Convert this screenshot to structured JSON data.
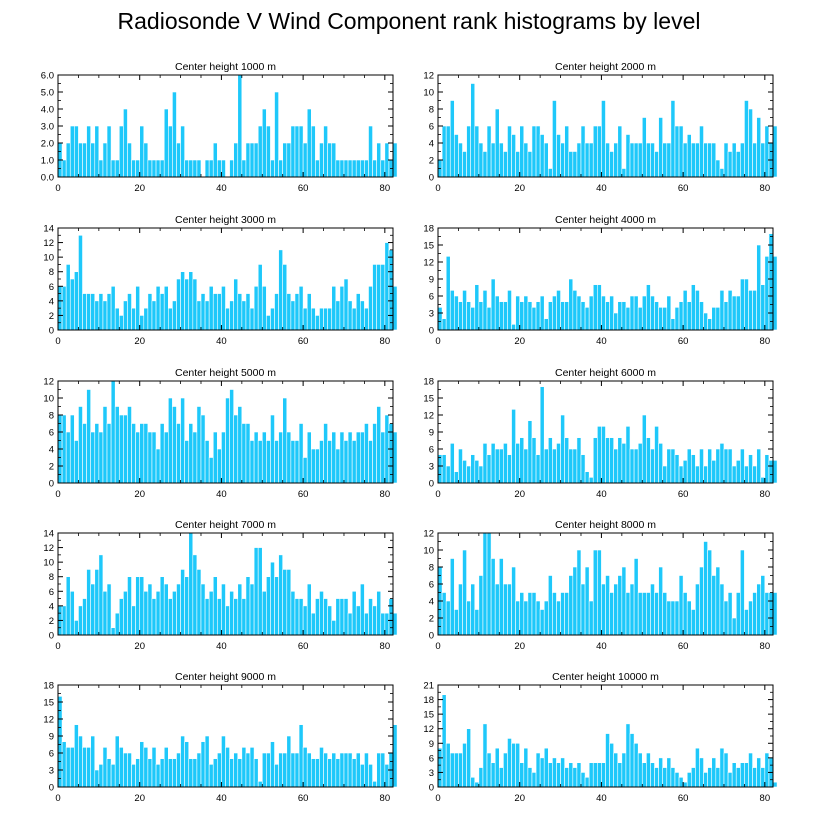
{
  "title": "Radiosonde V Wind Component rank histograms by level",
  "colors": {
    "bar": "#1ec8fa",
    "bar_edge": "#ffffff",
    "axis": "#000000"
  },
  "chart_data": [
    {
      "type": "bar",
      "title": "Center height 1000 m",
      "xlim": [
        0,
        82
      ],
      "ylim": [
        0,
        6
      ],
      "x_ticks": [
        "0",
        "20",
        "40",
        "60",
        "80"
      ],
      "x_tick_values": [
        0,
        20,
        40,
        60,
        80
      ],
      "y_ticks": [
        "0.0",
        "1.0",
        "2.0",
        "3.0",
        "4.0",
        "5.0",
        "6.0"
      ],
      "y_tick_values": [
        0,
        1,
        2,
        3,
        4,
        5,
        6
      ],
      "y_axis_side": "left",
      "values": [
        2,
        1,
        2,
        3,
        3,
        2,
        2,
        3,
        2,
        3,
        1,
        2,
        3,
        1,
        1,
        3,
        4,
        2,
        1,
        1,
        3,
        2,
        1,
        1,
        1,
        1,
        4,
        3,
        5,
        2,
        3,
        1,
        1,
        1,
        1,
        0,
        1,
        1,
        2,
        1,
        1,
        0,
        1,
        2,
        6,
        1,
        2,
        2,
        2,
        3,
        4,
        3,
        1,
        5,
        1,
        2,
        2,
        3,
        3,
        3,
        2,
        4,
        3,
        1,
        2,
        3,
        2,
        2,
        1,
        1,
        1,
        1,
        1,
        1,
        1,
        1,
        3,
        1,
        2,
        1,
        2,
        1,
        2
      ]
    },
    {
      "type": "bar",
      "title": "Center height 2000 m",
      "xlim": [
        0,
        82
      ],
      "ylim": [
        0,
        12
      ],
      "x_ticks": [
        "0",
        "20",
        "40",
        "60",
        "80"
      ],
      "x_tick_values": [
        0,
        20,
        40,
        60,
        80
      ],
      "y_ticks": [
        "0",
        "2",
        "4",
        "6",
        "8",
        "10",
        "12"
      ],
      "y_tick_values": [
        0,
        2,
        4,
        6,
        8,
        10,
        12
      ],
      "y_axis_side": "right",
      "values": [
        2,
        6,
        6,
        9,
        5,
        4,
        3,
        6,
        11,
        6,
        4,
        3,
        6,
        4,
        8,
        4,
        3,
        6,
        5,
        3,
        6,
        4,
        3,
        6,
        6,
        5,
        4,
        1,
        9,
        5,
        4,
        6,
        3,
        3,
        4,
        6,
        4,
        4,
        6,
        6,
        9,
        4,
        3,
        4,
        6,
        1,
        5,
        4,
        4,
        4,
        7,
        4,
        4,
        3,
        7,
        4,
        4,
        9,
        6,
        6,
        4,
        5,
        4,
        4,
        6,
        4,
        4,
        4,
        2,
        1,
        4,
        3,
        4,
        3,
        4,
        9,
        8,
        4,
        7,
        4,
        6,
        4,
        6
      ]
    },
    {
      "type": "bar",
      "title": "Center height 3000 m",
      "xlim": [
        0,
        82
      ],
      "ylim": [
        0,
        14
      ],
      "x_ticks": [
        "0",
        "20",
        "40",
        "60",
        "80"
      ],
      "x_tick_values": [
        0,
        20,
        40,
        60,
        80
      ],
      "y_ticks": [
        "0",
        "2",
        "4",
        "6",
        "8",
        "10",
        "12",
        "14"
      ],
      "y_tick_values": [
        0,
        2,
        4,
        6,
        8,
        10,
        12,
        14
      ],
      "y_axis_side": "left",
      "values": [
        6,
        6,
        9,
        7,
        8,
        13,
        5,
        5,
        5,
        4,
        5,
        4,
        5,
        6,
        3,
        2,
        4,
        5,
        3,
        6,
        2,
        3,
        5,
        4,
        6,
        5,
        6,
        3,
        4,
        7,
        8,
        7,
        8,
        7,
        4,
        5,
        4,
        6,
        5,
        5,
        6,
        3,
        4,
        7,
        5,
        4,
        5,
        3,
        6,
        9,
        6,
        2,
        3,
        5,
        11,
        9,
        5,
        4,
        5,
        6,
        3,
        5,
        3,
        2,
        3,
        3,
        3,
        6,
        4,
        6,
        7,
        4,
        3,
        5,
        4,
        3,
        6,
        9,
        9,
        9,
        12,
        11,
        6
      ]
    },
    {
      "type": "bar",
      "title": "Center height 4000 m",
      "xlim": [
        0,
        82
      ],
      "ylim": [
        0,
        18
      ],
      "x_ticks": [
        "0",
        "20",
        "40",
        "60",
        "80"
      ],
      "x_tick_values": [
        0,
        20,
        40,
        60,
        80
      ],
      "y_ticks": [
        "0",
        "3",
        "6",
        "9",
        "12",
        "15",
        "18"
      ],
      "y_tick_values": [
        0,
        3,
        6,
        9,
        12,
        15,
        18
      ],
      "y_axis_side": "right",
      "values": [
        4,
        2,
        13,
        7,
        6,
        5,
        7,
        5,
        4,
        8,
        5,
        7,
        4,
        9,
        6,
        5,
        5,
        7,
        1,
        6,
        5,
        6,
        5,
        4,
        5,
        6,
        2,
        5,
        6,
        7,
        5,
        5,
        9,
        7,
        6,
        5,
        4,
        6,
        8,
        8,
        6,
        5,
        6,
        3,
        5,
        5,
        4,
        6,
        6,
        4,
        6,
        8,
        6,
        5,
        4,
        4,
        6,
        2,
        4,
        5,
        7,
        5,
        8,
        7,
        5,
        3,
        2,
        4,
        4,
        7,
        5,
        7,
        6,
        6,
        9,
        9,
        7,
        7,
        15,
        8,
        13,
        17,
        13
      ]
    },
    {
      "type": "bar",
      "title": "Center height 5000 m",
      "xlim": [
        0,
        82
      ],
      "ylim": [
        0,
        12
      ],
      "x_ticks": [
        "0",
        "20",
        "40",
        "60",
        "80"
      ],
      "x_tick_values": [
        0,
        20,
        40,
        60,
        80
      ],
      "y_ticks": [
        "0",
        "2",
        "4",
        "6",
        "8",
        "10",
        "12"
      ],
      "y_tick_values": [
        0,
        2,
        4,
        6,
        8,
        10,
        12
      ],
      "y_axis_side": "left",
      "values": [
        8,
        8,
        6,
        8,
        5,
        9,
        7,
        11,
        6,
        7,
        6,
        9,
        7,
        12,
        9,
        8,
        8,
        9,
        7,
        6,
        7,
        7,
        6,
        6,
        4,
        7,
        6,
        10,
        9,
        7,
        10,
        5,
        7,
        6,
        9,
        8,
        5,
        3,
        6,
        4,
        6,
        10,
        11,
        8,
        9,
        7,
        7,
        5,
        6,
        5,
        6,
        5,
        8,
        5,
        6,
        10,
        6,
        5,
        5,
        7,
        3,
        6,
        4,
        4,
        5,
        7,
        5,
        6,
        4,
        6,
        5,
        6,
        5,
        6,
        6,
        7,
        5,
        7,
        9,
        6,
        8,
        7,
        6
      ]
    },
    {
      "type": "bar",
      "title": "Center height 6000 m",
      "xlim": [
        0,
        82
      ],
      "ylim": [
        0,
        18
      ],
      "x_ticks": [
        "0",
        "20",
        "40",
        "60",
        "80"
      ],
      "x_tick_values": [
        0,
        20,
        40,
        60,
        80
      ],
      "y_ticks": [
        "0",
        "3",
        "6",
        "9",
        "12",
        "15",
        "18"
      ],
      "y_tick_values": [
        0,
        3,
        6,
        9,
        12,
        15,
        18
      ],
      "y_axis_side": "right",
      "values": [
        5,
        5,
        3,
        7,
        2,
        6,
        4,
        3,
        5,
        4,
        3,
        7,
        5,
        7,
        6,
        6,
        7,
        5,
        13,
        7,
        8,
        6,
        11,
        8,
        5,
        17,
        6,
        8,
        6,
        7,
        12,
        8,
        6,
        6,
        8,
        5,
        2,
        1,
        8,
        10,
        10,
        8,
        8,
        6,
        8,
        7,
        10,
        6,
        6,
        7,
        12,
        8,
        6,
        10,
        7,
        3,
        6,
        6,
        5,
        3,
        4,
        6,
        5,
        3,
        6,
        3,
        6,
        4,
        6,
        7,
        6,
        6,
        3,
        4,
        6,
        3,
        5,
        3,
        6,
        1,
        5,
        4,
        4
      ]
    },
    {
      "type": "bar",
      "title": "Center height 7000 m",
      "xlim": [
        0,
        82
      ],
      "ylim": [
        0,
        14
      ],
      "x_ticks": [
        "0",
        "20",
        "40",
        "60",
        "80"
      ],
      "x_tick_values": [
        0,
        20,
        40,
        60,
        80
      ],
      "y_ticks": [
        "0",
        "2",
        "4",
        "6",
        "8",
        "10",
        "12",
        "14"
      ],
      "y_tick_values": [
        0,
        2,
        4,
        6,
        8,
        10,
        12,
        14
      ],
      "y_axis_side": "left",
      "values": [
        4,
        4,
        8,
        6,
        2,
        4,
        5,
        9,
        7,
        9,
        11,
        6,
        7,
        1,
        3,
        5,
        6,
        8,
        4,
        8,
        8,
        6,
        7,
        5,
        6,
        8,
        7,
        5,
        6,
        7,
        9,
        8,
        14,
        11,
        9,
        7,
        5,
        6,
        8,
        5,
        7,
        4,
        6,
        5,
        7,
        5,
        8,
        7,
        12,
        12,
        6,
        8,
        10,
        8,
        11,
        9,
        9,
        6,
        5,
        5,
        4,
        7,
        3,
        5,
        6,
        5,
        4,
        2,
        5,
        5,
        5,
        3,
        6,
        4,
        7,
        3,
        5,
        4,
        6,
        3,
        3,
        5,
        3
      ]
    },
    {
      "type": "bar",
      "title": "Center height 8000 m",
      "xlim": [
        0,
        82
      ],
      "ylim": [
        0,
        12
      ],
      "x_ticks": [
        "0",
        "20",
        "40",
        "60",
        "80"
      ],
      "x_tick_values": [
        0,
        20,
        40,
        60,
        80
      ],
      "y_ticks": [
        "0",
        "2",
        "4",
        "6",
        "8",
        "10",
        "12"
      ],
      "y_tick_values": [
        0,
        2,
        4,
        6,
        8,
        10,
        12
      ],
      "y_axis_side": "right",
      "values": [
        8,
        5,
        4,
        9,
        3,
        6,
        10,
        4,
        6,
        3,
        7,
        12,
        12,
        9,
        6,
        9,
        6,
        6,
        8,
        4,
        5,
        4,
        5,
        5,
        4,
        3,
        4,
        7,
        5,
        4,
        5,
        5,
        7,
        8,
        10,
        6,
        8,
        4,
        10,
        10,
        6,
        7,
        5,
        6,
        7,
        8,
        5,
        6,
        9,
        5,
        5,
        5,
        6,
        5,
        8,
        5,
        4,
        4,
        4,
        7,
        5,
        4,
        3,
        6,
        8,
        11,
        10,
        7,
        8,
        6,
        4,
        5,
        2,
        5,
        10,
        3,
        4,
        5,
        6,
        7,
        5,
        5,
        5
      ]
    },
    {
      "type": "bar",
      "title": "Center height 9000 m",
      "xlim": [
        0,
        82
      ],
      "ylim": [
        0,
        18
      ],
      "x_ticks": [
        "0",
        "20",
        "40",
        "60",
        "80"
      ],
      "x_tick_values": [
        0,
        20,
        40,
        60,
        80
      ],
      "y_ticks": [
        "0",
        "3",
        "6",
        "9",
        "12",
        "15",
        "18"
      ],
      "y_tick_values": [
        0,
        3,
        6,
        9,
        12,
        15,
        18
      ],
      "y_axis_side": "left",
      "values": [
        16,
        8,
        7,
        7,
        11,
        9,
        7,
        7,
        9,
        3,
        4,
        7,
        5,
        4,
        9,
        7,
        6,
        6,
        4,
        5,
        8,
        7,
        5,
        7,
        4,
        5,
        7,
        5,
        5,
        6,
        9,
        8,
        5,
        5,
        6,
        8,
        9,
        4,
        5,
        6,
        9,
        7,
        5,
        6,
        5,
        7,
        6,
        7,
        5,
        1,
        6,
        6,
        8,
        4,
        6,
        6,
        9,
        6,
        6,
        11,
        7,
        6,
        5,
        5,
        7,
        6,
        5,
        6,
        5,
        6,
        6,
        6,
        5,
        6,
        4,
        6,
        4,
        1,
        6,
        6,
        4,
        6,
        11
      ]
    },
    {
      "type": "bar",
      "title": "Center height 10000 m",
      "xlim": [
        0,
        82
      ],
      "ylim": [
        0,
        21
      ],
      "x_ticks": [
        "0",
        "20",
        "40",
        "60",
        "80"
      ],
      "x_tick_values": [
        0,
        20,
        40,
        60,
        80
      ],
      "y_ticks": [
        "0",
        "3",
        "6",
        "9",
        "12",
        "15",
        "18",
        "21"
      ],
      "y_tick_values": [
        0,
        3,
        6,
        9,
        12,
        15,
        18,
        21
      ],
      "y_axis_side": "right",
      "values": [
        8,
        19,
        9,
        7,
        7,
        7,
        9,
        12,
        2,
        1,
        4,
        13,
        7,
        5,
        8,
        4,
        7,
        10,
        9,
        9,
        5,
        8,
        4,
        3,
        7,
        6,
        8,
        5,
        6,
        5,
        6,
        4,
        5,
        4,
        5,
        3,
        2,
        5,
        5,
        5,
        5,
        11,
        9,
        7,
        5,
        7,
        13,
        11,
        9,
        7,
        5,
        7,
        5,
        4,
        6,
        4,
        6,
        4,
        3,
        2,
        1,
        3,
        4,
        8,
        6,
        3,
        4,
        6,
        4,
        8,
        7,
        3,
        5,
        4,
        5,
        5,
        7,
        4,
        6,
        4,
        7,
        6,
        1
      ]
    }
  ]
}
